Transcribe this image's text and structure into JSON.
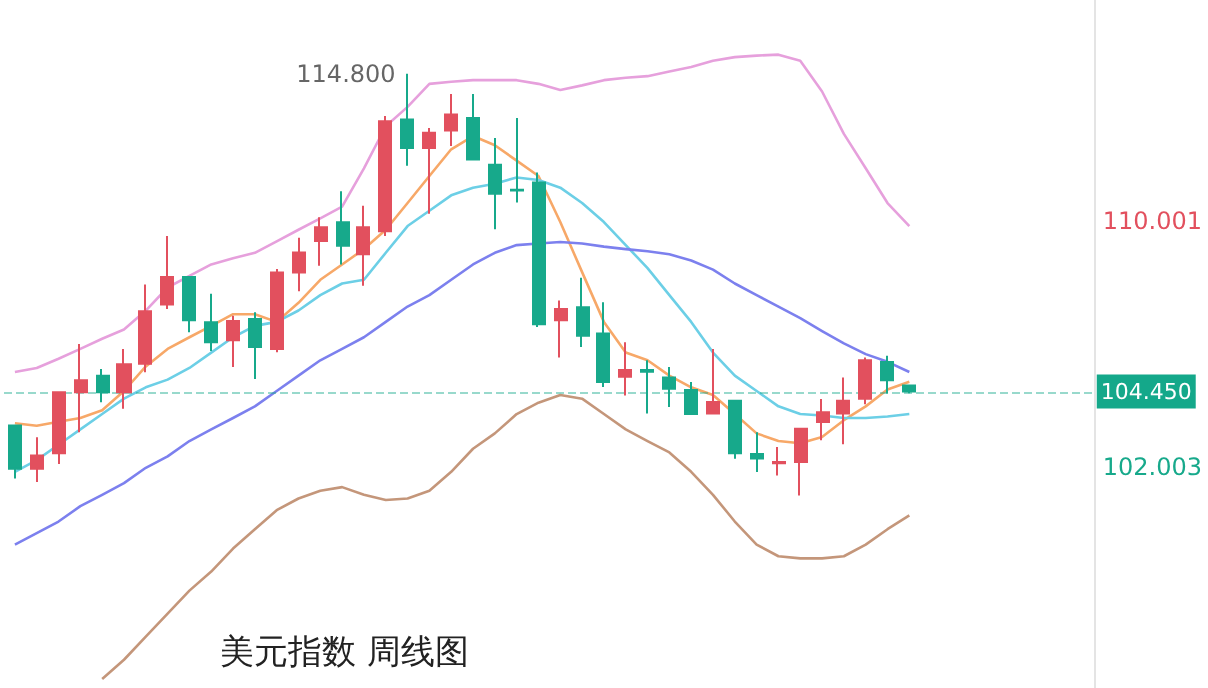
{
  "chart_data": {
    "type": "candlestick",
    "title": "美元指数 周线图",
    "categories": [
      null,
      null,
      null,
      null,
      null,
      null,
      null,
      null,
      null,
      null,
      null,
      null,
      null,
      null,
      null,
      null,
      null,
      null,
      null,
      null,
      null,
      null,
      null,
      null,
      null,
      null,
      null,
      null,
      null,
      null,
      null,
      null,
      null,
      null,
      null,
      null,
      null,
      null,
      null,
      null,
      null,
      null,
      null,
      null,
      null,
      null,
      null,
      null,
      null,
      null
    ],
    "ohlc": [
      [
        103.35,
        103.35,
        101.62,
        101.94
      ],
      [
        101.94,
        102.96,
        101.51,
        102.37
      ],
      [
        102.44,
        104.43,
        102.09,
        104.43
      ],
      [
        104.43,
        106.0,
        103.13,
        104.82
      ],
      [
        104.97,
        105.19,
        104.1,
        104.43
      ],
      [
        104.43,
        105.84,
        103.89,
        105.34
      ],
      [
        105.36,
        107.94,
        105.08,
        107.07
      ],
      [
        107.29,
        109.52,
        107.14,
        108.18
      ],
      [
        108.18,
        108.18,
        106.38,
        106.77
      ],
      [
        106.71,
        107.64,
        105.77,
        106.06
      ],
      [
        106.12,
        106.92,
        105.25,
        106.75
      ],
      [
        106.81,
        107.03,
        104.86,
        105.9
      ],
      [
        105.84,
        108.44,
        105.73,
        108.33
      ],
      [
        108.33,
        109.46,
        107.72,
        108.98
      ],
      [
        109.35,
        110.13,
        108.55,
        109.8
      ],
      [
        109.96,
        110.97,
        108.59,
        109.2
      ],
      [
        108.92,
        110.5,
        107.9,
        109.8
      ],
      [
        109.67,
        113.42,
        109.52,
        113.25
      ],
      [
        113.31,
        114.8,
        111.8,
        112.38
      ],
      [
        112.38,
        113.03,
        110.24,
        112.88
      ],
      [
        112.95,
        114.14,
        112.45,
        113.47
      ],
      [
        113.36,
        114.14,
        112.01,
        112.01
      ],
      [
        111.84,
        112.71,
        109.74,
        110.89
      ],
      [
        111.02,
        113.36,
        110.61,
        111.0
      ],
      [
        111.26,
        111.58,
        106.55,
        106.64
      ],
      [
        106.77,
        107.42,
        105.56,
        107.14
      ],
      [
        107.2,
        108.16,
        105.9,
        106.27
      ],
      [
        106.34,
        107.36,
        104.6,
        104.76
      ],
      [
        104.93,
        106.06,
        104.32,
        105.15
      ],
      [
        105.15,
        105.47,
        103.74,
        105.1
      ],
      [
        104.91,
        105.25,
        103.95,
        104.54
      ],
      [
        104.5,
        104.76,
        103.72,
        103.72
      ],
      [
        103.74,
        105.84,
        103.74,
        104.11
      ],
      [
        104.15,
        104.15,
        102.26,
        102.44
      ],
      [
        102.42,
        103.13,
        101.83,
        102.27
      ],
      [
        102.12,
        102.65,
        101.72,
        102.16
      ],
      [
        102.16,
        103.24,
        101.07,
        103.24
      ],
      [
        103.46,
        104.21,
        102.87,
        103.78
      ],
      [
        103.74,
        104.91,
        102.74,
        104.15
      ],
      [
        104.22,
        105.56,
        104.04,
        105.47
      ],
      [
        105.41,
        105.62,
        104.39,
        104.82
      ],
      [
        104.65,
        104.65,
        104.4,
        104.45
      ],
      null,
      null,
      null,
      null,
      null,
      null,
      null,
      null
    ],
    "series": [
      {
        "type": "line",
        "color": "#e6a0dc",
        "values": [
          105.09,
          105.22,
          105.52,
          105.84,
          106.17,
          106.47,
          107.09,
          107.84,
          108.22,
          108.59,
          108.79,
          108.97,
          109.34,
          109.72,
          110.09,
          110.47,
          111.72,
          113.09,
          113.72,
          114.47,
          114.54,
          114.59,
          114.59,
          114.59,
          114.47,
          114.27,
          114.42,
          114.59,
          114.67,
          114.72,
          114.87,
          115.02,
          115.22,
          115.34,
          115.39,
          115.42,
          115.22,
          114.22,
          112.84,
          111.72,
          110.59,
          109.84,
          null,
          null,
          null,
          null,
          null,
          null,
          null,
          null
        ]
      },
      {
        "type": "line",
        "color": "#f7a868",
        "values": [
          103.42,
          103.34,
          103.47,
          103.59,
          103.84,
          104.47,
          105.27,
          105.84,
          106.22,
          106.59,
          106.97,
          106.97,
          106.72,
          107.34,
          108.09,
          108.59,
          109.09,
          109.72,
          110.59,
          111.47,
          112.34,
          112.77,
          112.47,
          111.97,
          111.47,
          109.97,
          108.34,
          106.72,
          105.72,
          105.47,
          104.97,
          104.59,
          104.34,
          103.72,
          103.09,
          102.84,
          102.77,
          102.97,
          103.52,
          103.97,
          104.52,
          104.77,
          null,
          null,
          null,
          null,
          null,
          null,
          null,
          null
        ]
      },
      {
        "type": "line",
        "color": "#6ccfe6",
        "values": [
          101.84,
          102.22,
          102.72,
          103.22,
          103.72,
          104.22,
          104.59,
          104.84,
          105.22,
          105.72,
          106.22,
          106.59,
          106.72,
          107.09,
          107.59,
          107.97,
          108.09,
          108.97,
          109.84,
          110.34,
          110.84,
          111.09,
          111.22,
          111.42,
          111.34,
          111.09,
          110.59,
          109.97,
          109.22,
          108.47,
          107.59,
          106.72,
          105.72,
          104.97,
          104.47,
          103.97,
          103.72,
          103.67,
          103.59,
          103.59,
          103.64,
          103.72,
          null,
          null,
          null,
          null,
          null,
          null,
          null,
          null
        ]
      },
      {
        "type": "line",
        "color": "#7c80ee",
        "values": [
          99.47,
          99.84,
          100.22,
          100.72,
          101.09,
          101.47,
          101.97,
          102.34,
          102.84,
          103.22,
          103.59,
          103.97,
          104.47,
          104.97,
          105.47,
          105.84,
          106.22,
          106.72,
          107.22,
          107.59,
          108.09,
          108.59,
          108.97,
          109.22,
          109.27,
          109.32,
          109.27,
          109.17,
          109.09,
          109.02,
          108.92,
          108.72,
          108.42,
          107.97,
          107.59,
          107.22,
          106.84,
          106.42,
          106.02,
          105.67,
          105.42,
          105.09,
          null,
          null,
          null,
          null,
          null,
          null,
          null,
          null
        ]
      },
      {
        "type": "line",
        "color": "#c4967a",
        "values": [
          null,
          null,
          null,
          null,
          95.09,
          95.72,
          96.47,
          97.22,
          97.97,
          98.59,
          99.34,
          99.97,
          100.59,
          100.97,
          101.22,
          101.34,
          101.09,
          100.92,
          100.97,
          101.22,
          101.84,
          102.59,
          103.09,
          103.72,
          104.09,
          104.34,
          104.22,
          103.72,
          103.22,
          102.84,
          102.47,
          101.84,
          101.09,
          100.22,
          99.47,
          99.09,
          99.02,
          99.02,
          99.09,
          99.47,
          99.97,
          100.42,
          null,
          null,
          null,
          null,
          null,
          null,
          null,
          null
        ]
      }
    ],
    "ylim": [
      94.8,
      117.2
    ],
    "yticks": [
      110.001,
      102.003
    ],
    "tick_labels": "y",
    "grid": false,
    "ref_lines": [
      {
        "axis": "y",
        "value": 104.45,
        "label": "104.450",
        "color": "#14a88a",
        "line_style": "dashed"
      }
    ],
    "annotations": [
      "114.800"
    ]
  }
}
